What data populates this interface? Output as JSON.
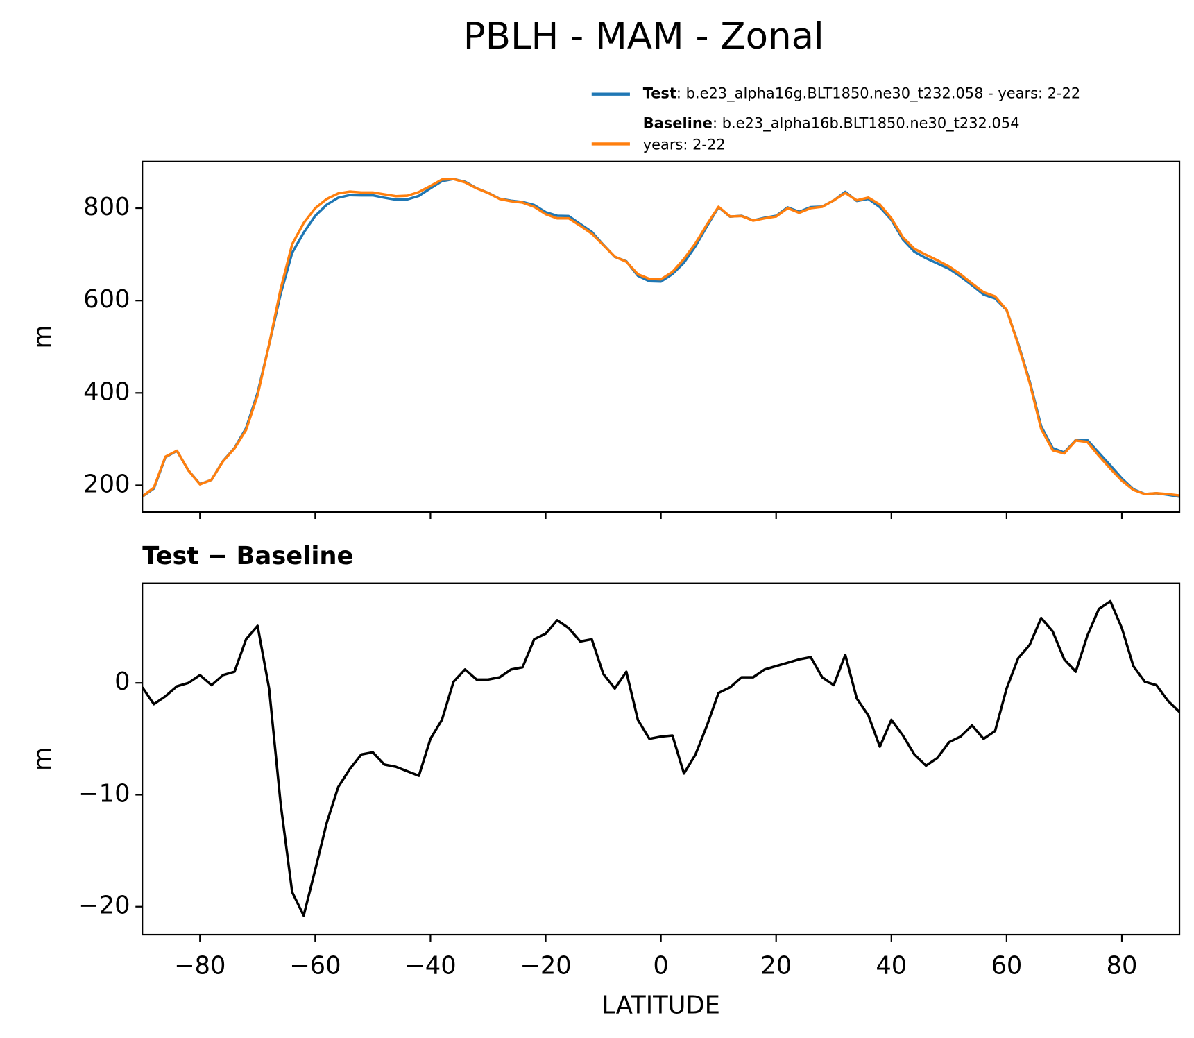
{
  "title": "PBLH - MAM - Zonal",
  "chart_data": [
    {
      "type": "line",
      "ylabel": "m",
      "legend": "upper right outside",
      "xlim": [
        -90,
        90
      ],
      "ylim": [
        142,
        901
      ],
      "show_xtick_labels": false,
      "xticks": [
        -80,
        -60,
        -40,
        -20,
        0,
        20,
        40,
        60,
        80
      ],
      "yticks": [
        200,
        400,
        600,
        800
      ],
      "x": [
        -90,
        -88,
        -86,
        -84,
        -82,
        -80,
        -78,
        -76,
        -74,
        -72,
        -70,
        -68,
        -66,
        -64,
        -62,
        -60,
        -58,
        -56,
        -54,
        -52,
        -50,
        -48,
        -46,
        -44,
        -42,
        -40,
        -38,
        -36,
        -34,
        -32,
        -30,
        -28,
        -26,
        -24,
        -22,
        -20,
        -18,
        -16,
        -14,
        -12,
        -10,
        -8,
        -6,
        -4,
        -2,
        0,
        2,
        4,
        6,
        8,
        10,
        12,
        14,
        16,
        18,
        20,
        22,
        24,
        26,
        28,
        30,
        32,
        34,
        36,
        38,
        40,
        42,
        44,
        46,
        48,
        50,
        52,
        54,
        56,
        58,
        60,
        62,
        64,
        66,
        68,
        70,
        72,
        74,
        76,
        78,
        80,
        82,
        84,
        86,
        88,
        90
      ],
      "series": [
        {
          "name": "Test",
          "color": "#1f77b4",
          "description": [
            ": b.e23_alpha16g.BLT1850.ne30_t232.058 - years: 2-22"
          ],
          "values": [
            175.6,
            193.1,
            260.8,
            274.7,
            232,
            202.7,
            211.8,
            252.7,
            281,
            323.9,
            400.1,
            504.5,
            614.2,
            703.3,
            747.2,
            783.3,
            807.5,
            822.7,
            828.3,
            827.6,
            827.8,
            822.7,
            818.5,
            819.1,
            826.7,
            843,
            858.7,
            863.1,
            857.2,
            843.3,
            833.3,
            820.5,
            816.2,
            813.4,
            806.9,
            791.4,
            783.6,
            782.9,
            765.7,
            748.9,
            720.8,
            694.5,
            685,
            653.7,
            642,
            641.2,
            657.3,
            681.9,
            717.6,
            761.2,
            802.1,
            781.6,
            783.5,
            773.5,
            779.2,
            783.5,
            801.8,
            792.1,
            802.3,
            803.5,
            816.8,
            835.5,
            815.6,
            820.1,
            802.3,
            774.7,
            732.3,
            705.6,
            691.6,
            680.3,
            668.7,
            652.2,
            633.2,
            613,
            604.7,
            579.5,
            507.2,
            425.4,
            327.8,
            280.6,
            271.1,
            298,
            298.2,
            270.6,
            243.3,
            214.9,
            191.5,
            181.1,
            182.8,
            179.4,
            175.4
          ]
        },
        {
          "name": "Baseline",
          "color": "#ff7f0e",
          "description": [
            ": b.e23_alpha16b.BLT1850.ne30_t232.054",
            "years: 2-22"
          ],
          "values": [
            176,
            195,
            262,
            275,
            232,
            202,
            212,
            252,
            280,
            320,
            395,
            505,
            625,
            722,
            768,
            800,
            820,
            832,
            836,
            834,
            834,
            830,
            826,
            827,
            835,
            848,
            862,
            863,
            856,
            843,
            833,
            820,
            815,
            812,
            803,
            787,
            778,
            778,
            762,
            745,
            720,
            695,
            684,
            657,
            647,
            646,
            662,
            690,
            724,
            765,
            803,
            782,
            783,
            773,
            778,
            782,
            800,
            790,
            800,
            803,
            817,
            833,
            817,
            823,
            808,
            778,
            737,
            712,
            699,
            687,
            674,
            657,
            637,
            618,
            609,
            580,
            505,
            422,
            322,
            276,
            269,
            297,
            294,
            264,
            236,
            210,
            190,
            181,
            183,
            181,
            178
          ]
        }
      ]
    },
    {
      "type": "line",
      "title": "Test − Baseline",
      "ylabel": "m",
      "xlabel": "LATITUDE",
      "xlim": [
        -90,
        90
      ],
      "ylim": [
        -22.5,
        8.9
      ],
      "show_xtick_labels": true,
      "xticks": [
        {
          "value": -80,
          "label": "−80"
        },
        {
          "value": -60,
          "label": "−60"
        },
        {
          "value": -40,
          "label": "−40"
        },
        {
          "value": -20,
          "label": "−20"
        },
        0,
        20,
        40,
        60,
        80
      ],
      "yticks": [
        {
          "value": -20,
          "label": "−20"
        },
        {
          "value": -10,
          "label": "−10"
        },
        0
      ],
      "x": [
        -90,
        -88,
        -86,
        -84,
        -82,
        -80,
        -78,
        -76,
        -74,
        -72,
        -70,
        -68,
        -66,
        -64,
        -62,
        -60,
        -58,
        -56,
        -54,
        -52,
        -50,
        -48,
        -46,
        -44,
        -42,
        -40,
        -38,
        -36,
        -34,
        -32,
        -30,
        -28,
        -26,
        -24,
        -22,
        -20,
        -18,
        -16,
        -14,
        -12,
        -10,
        -8,
        -6,
        -4,
        -2,
        0,
        2,
        4,
        6,
        8,
        10,
        12,
        14,
        16,
        18,
        20,
        22,
        24,
        26,
        28,
        30,
        32,
        34,
        36,
        38,
        40,
        42,
        44,
        46,
        48,
        50,
        52,
        54,
        56,
        58,
        60,
        62,
        64,
        66,
        68,
        70,
        72,
        74,
        76,
        78,
        80,
        82,
        84,
        86,
        88,
        90
      ],
      "color": "#000000",
      "values": [
        -0.4,
        -1.9,
        -1.2,
        -0.3,
        0,
        0.7,
        -0.2,
        0.7,
        1,
        3.9,
        5.1,
        -0.5,
        -10.8,
        -18.7,
        -20.8,
        -16.7,
        -12.5,
        -9.3,
        -7.7,
        -6.4,
        -6.2,
        -7.3,
        -7.5,
        -7.9,
        -8.3,
        -5,
        -3.3,
        0.1,
        1.2,
        0.3,
        0.3,
        0.5,
        1.2,
        1.4,
        3.9,
        4.4,
        5.6,
        4.9,
        3.7,
        3.9,
        0.8,
        -0.5,
        1,
        -3.3,
        -5,
        -4.8,
        -4.7,
        -8.1,
        -6.4,
        -3.8,
        -0.9,
        -0.4,
        0.5,
        0.5,
        1.2,
        1.5,
        1.8,
        2.1,
        2.3,
        0.5,
        -0.2,
        2.5,
        -1.4,
        -2.9,
        -5.7,
        -3.3,
        -4.7,
        -6.4,
        -7.4,
        -6.7,
        -5.3,
        -4.8,
        -3.8,
        -5,
        -4.3,
        -0.5,
        2.2,
        3.4,
        5.8,
        4.6,
        2.1,
        1,
        4.2,
        6.6,
        7.3,
        4.9,
        1.5,
        0.1,
        -0.2,
        -1.6,
        -2.6
      ]
    }
  ]
}
